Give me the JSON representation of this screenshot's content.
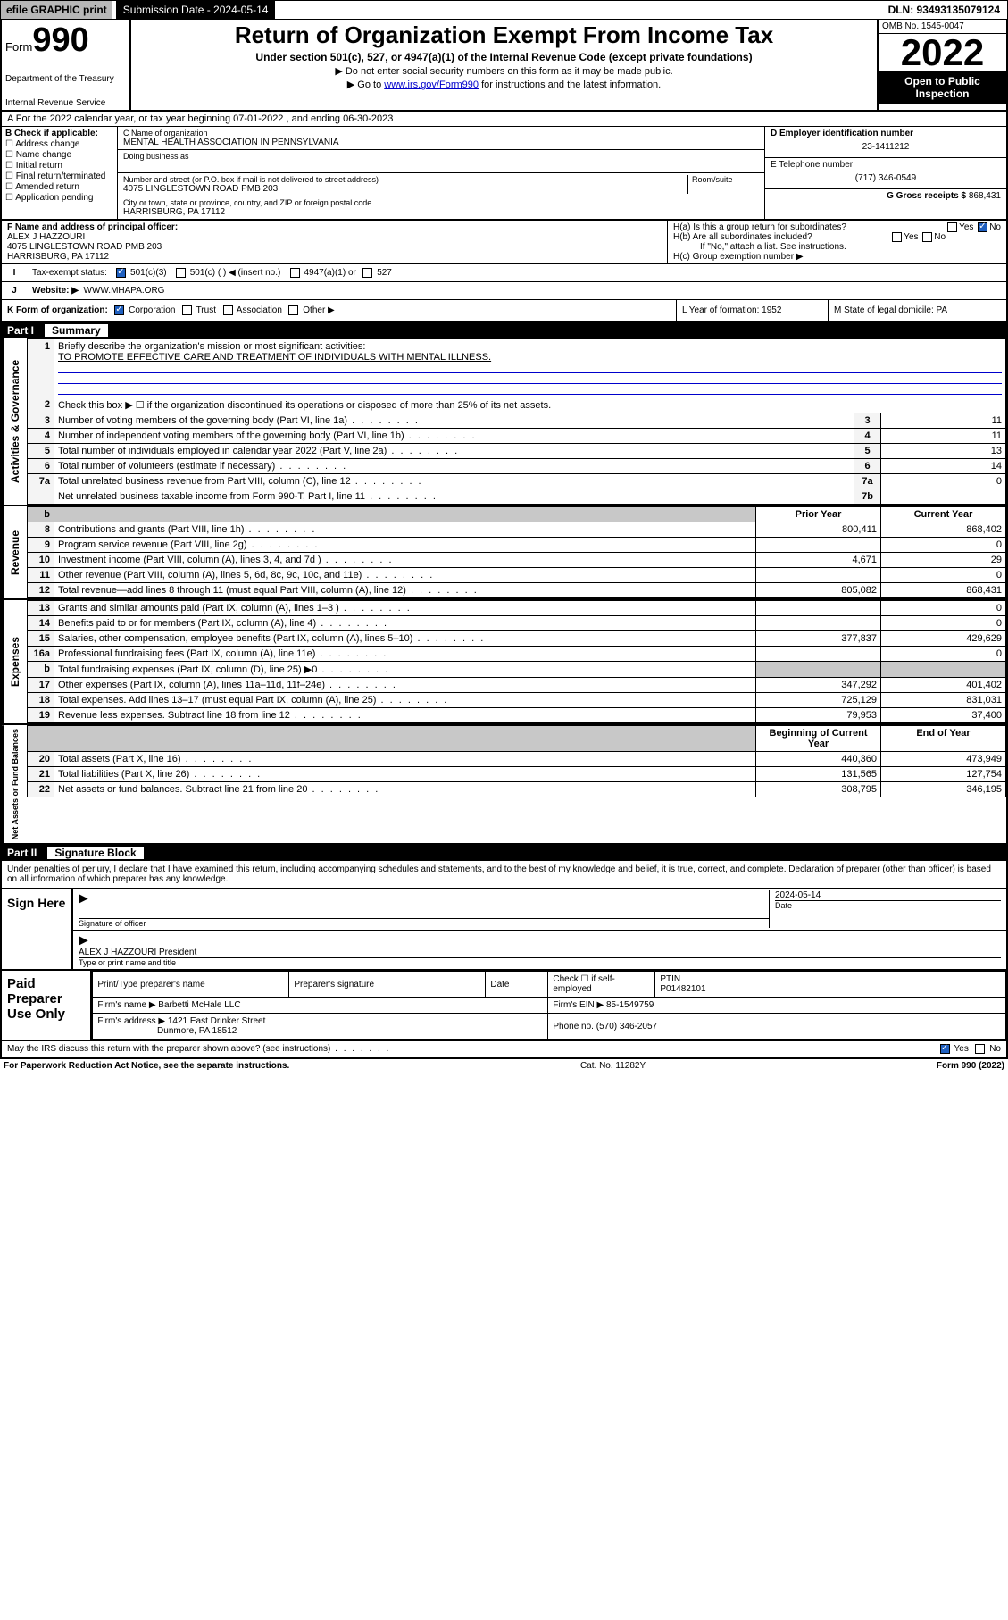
{
  "topbar": {
    "efile_label": "efile GRAPHIC print",
    "submission_label": "Submission Date - 2024-05-14",
    "dln": "DLN: 93493135079124"
  },
  "header": {
    "form_small": "Form",
    "form_big": "990",
    "title": "Return of Organization Exempt From Income Tax",
    "subtitle": "Under section 501(c), 527, or 4947(a)(1) of the Internal Revenue Code (except private foundations)",
    "note1": "Do not enter social security numbers on this form as it may be made public.",
    "note2_prefix": "Go to ",
    "note2_link": "www.irs.gov/Form990",
    "note2_suffix": " for instructions and the latest information.",
    "dept": "Department of the Treasury",
    "irs": "Internal Revenue Service",
    "omb": "OMB No. 1545-0047",
    "year": "2022",
    "open": "Open to Public Inspection"
  },
  "taxyear": {
    "text": "A For the 2022 calendar year, or tax year beginning 07-01-2022   , and ending 06-30-2023"
  },
  "B": {
    "label": "B Check if applicable:",
    "opts": [
      "Address change",
      "Name change",
      "Initial return",
      "Final return/terminated",
      "Amended return",
      "Application pending"
    ]
  },
  "C": {
    "name_label": "C Name of organization",
    "name": "MENTAL HEALTH ASSOCIATION IN PENNSYLVANIA",
    "dba_label": "Doing business as",
    "street_label": "Number and street (or P.O. box if mail is not delivered to street address)",
    "room_label": "Room/suite",
    "street": "4075 LINGLESTOWN ROAD PMB 203",
    "city_label": "City or town, state or province, country, and ZIP or foreign postal code",
    "city": "HARRISBURG, PA  17112"
  },
  "D": {
    "label": "D Employer identification number",
    "value": "23-1411212"
  },
  "E": {
    "label": "E Telephone number",
    "value": "(717) 346-0549"
  },
  "G": {
    "label": "G Gross receipts $",
    "value": "868,431"
  },
  "F": {
    "label": "F  Name and address of principal officer:",
    "name": "ALEX J HAZZOURI",
    "addr1": "4075 LINGLESTOWN ROAD PMB 203",
    "addr2": "HARRISBURG, PA  17112"
  },
  "H": {
    "a": "H(a)  Is this a group return for subordinates?",
    "b": "H(b)  Are all subordinates included?",
    "b_note": "If \"No,\" attach a list. See instructions.",
    "c": "H(c)  Group exemption number ▶",
    "yes": "Yes",
    "no": "No"
  },
  "I": {
    "label": "Tax-exempt status:",
    "opt1": "501(c)(3)",
    "opt2": "501(c) (  ) ◀ (insert no.)",
    "opt3": "4947(a)(1) or",
    "opt4": "527"
  },
  "J": {
    "label": "Website: ▶",
    "value": "WWW.MHAPA.ORG"
  },
  "K": {
    "label": "K Form of organization:",
    "opts": [
      "Corporation",
      "Trust",
      "Association",
      "Other ▶"
    ]
  },
  "L": {
    "label": "L Year of formation: 1952"
  },
  "M": {
    "label": "M State of legal domicile: PA"
  },
  "partI": {
    "num": "Part I",
    "title": "Summary"
  },
  "summary": {
    "q1": "Briefly describe the organization's mission or most significant activities:",
    "mission": "TO PROMOTE EFFECTIVE CARE AND TREATMENT OF INDIVIDUALS WITH MENTAL ILLNESS.",
    "q2": "Check this box ▶ ☐  if the organization discontinued its operations or disposed of more than 25% of its net assets.",
    "rows_gov": [
      {
        "n": "3",
        "d": "Number of voting members of the governing body (Part VI, line 1a)",
        "b": "3",
        "v": "11"
      },
      {
        "n": "4",
        "d": "Number of independent voting members of the governing body (Part VI, line 1b)",
        "b": "4",
        "v": "11"
      },
      {
        "n": "5",
        "d": "Total number of individuals employed in calendar year 2022 (Part V, line 2a)",
        "b": "5",
        "v": "13"
      },
      {
        "n": "6",
        "d": "Total number of volunteers (estimate if necessary)",
        "b": "6",
        "v": "14"
      },
      {
        "n": "7a",
        "d": "Total unrelated business revenue from Part VIII, column (C), line 12",
        "b": "7a",
        "v": "0"
      },
      {
        "n": "",
        "d": "Net unrelated business taxable income from Form 990-T, Part I, line 11",
        "b": "7b",
        "v": ""
      }
    ],
    "col_prior": "Prior Year",
    "col_current": "Current Year",
    "rows_rev": [
      {
        "n": "8",
        "d": "Contributions and grants (Part VIII, line 1h)",
        "p": "800,411",
        "c": "868,402"
      },
      {
        "n": "9",
        "d": "Program service revenue (Part VIII, line 2g)",
        "p": "",
        "c": "0"
      },
      {
        "n": "10",
        "d": "Investment income (Part VIII, column (A), lines 3, 4, and 7d )",
        "p": "4,671",
        "c": "29"
      },
      {
        "n": "11",
        "d": "Other revenue (Part VIII, column (A), lines 5, 6d, 8c, 9c, 10c, and 11e)",
        "p": "",
        "c": "0"
      },
      {
        "n": "12",
        "d": "Total revenue—add lines 8 through 11 (must equal Part VIII, column (A), line 12)",
        "p": "805,082",
        "c": "868,431"
      }
    ],
    "rows_exp": [
      {
        "n": "13",
        "d": "Grants and similar amounts paid (Part IX, column (A), lines 1–3 )",
        "p": "",
        "c": "0"
      },
      {
        "n": "14",
        "d": "Benefits paid to or for members (Part IX, column (A), line 4)",
        "p": "",
        "c": "0"
      },
      {
        "n": "15",
        "d": "Salaries, other compensation, employee benefits (Part IX, column (A), lines 5–10)",
        "p": "377,837",
        "c": "429,629"
      },
      {
        "n": "16a",
        "d": "Professional fundraising fees (Part IX, column (A), line 11e)",
        "p": "",
        "c": "0"
      },
      {
        "n": "b",
        "d": "Total fundraising expenses (Part IX, column (D), line 25) ▶0",
        "p": "GREY",
        "c": "GREY"
      },
      {
        "n": "17",
        "d": "Other expenses (Part IX, column (A), lines 11a–11d, 11f–24e)",
        "p": "347,292",
        "c": "401,402"
      },
      {
        "n": "18",
        "d": "Total expenses. Add lines 13–17 (must equal Part IX, column (A), line 25)",
        "p": "725,129",
        "c": "831,031"
      },
      {
        "n": "19",
        "d": "Revenue less expenses. Subtract line 18 from line 12",
        "p": "79,953",
        "c": "37,400"
      }
    ],
    "col_begin": "Beginning of Current Year",
    "col_end": "End of Year",
    "rows_net": [
      {
        "n": "20",
        "d": "Total assets (Part X, line 16)",
        "p": "440,360",
        "c": "473,949"
      },
      {
        "n": "21",
        "d": "Total liabilities (Part X, line 26)",
        "p": "131,565",
        "c": "127,754"
      },
      {
        "n": "22",
        "d": "Net assets or fund balances. Subtract line 21 from line 20",
        "p": "308,795",
        "c": "346,195"
      }
    ]
  },
  "sidelabels": {
    "gov": "Activities & Governance",
    "rev": "Revenue",
    "exp": "Expenses",
    "net": "Net Assets or Fund Balances"
  },
  "partII": {
    "num": "Part II",
    "title": "Signature Block"
  },
  "sig": {
    "decl": "Under penalties of perjury, I declare that I have examined this return, including accompanying schedules and statements, and to the best of my knowledge and belief, it is true, correct, and complete. Declaration of preparer (other than officer) is based on all information of which preparer has any knowledge.",
    "sign_here": "Sign Here",
    "sig_officer": "Signature of officer",
    "date": "Date",
    "date_val": "2024-05-14",
    "name_title": "ALEX J HAZZOURI  President",
    "type_name": "Type or print name and title"
  },
  "prep": {
    "label": "Paid Preparer Use Only",
    "h_print": "Print/Type preparer's name",
    "h_sig": "Preparer's signature",
    "h_date": "Date",
    "h_check": "Check ☐ if self-employed",
    "h_ptin": "PTIN",
    "ptin": "P01482101",
    "firm_name_l": "Firm's name    ▶",
    "firm_name": "Barbetti McHale LLC",
    "firm_ein_l": "Firm's EIN ▶",
    "firm_ein": "85-1549759",
    "firm_addr_l": "Firm's address ▶",
    "firm_addr1": "1421 East Drinker Street",
    "firm_addr2": "Dunmore, PA  18512",
    "phone_l": "Phone no.",
    "phone": "(570) 346-2057"
  },
  "footer": {
    "may": "May the IRS discuss this return with the preparer shown above? (see instructions)",
    "yes": "Yes",
    "no": "No",
    "paperwork": "For Paperwork Reduction Act Notice, see the separate instructions.",
    "cat": "Cat. No. 11282Y",
    "form": "Form 990 (2022)"
  }
}
